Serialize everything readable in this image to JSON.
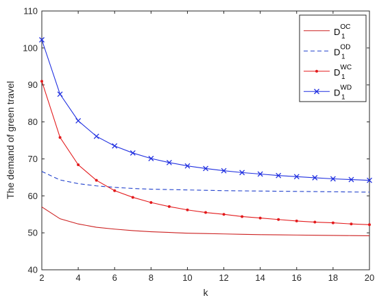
{
  "chart_data": {
    "type": "line",
    "xlabel": "k",
    "ylabel": "The demand of green travel",
    "xlim": [
      2,
      20
    ],
    "ylim": [
      40,
      110
    ],
    "xticks": [
      2,
      4,
      6,
      8,
      10,
      12,
      14,
      16,
      18,
      20
    ],
    "yticks": [
      40,
      50,
      60,
      70,
      80,
      90,
      100,
      110
    ],
    "legend_position": "top-right",
    "grid": false,
    "x": [
      2,
      3,
      4,
      5,
      6,
      7,
      8,
      9,
      10,
      11,
      12,
      13,
      14,
      15,
      16,
      17,
      18,
      19,
      20
    ],
    "series": [
      {
        "label_base": "D",
        "label_sub": "1",
        "label_sup": "OC",
        "color": "#cc1f1f",
        "line_style": "solid",
        "marker": "none",
        "values": [
          57.0,
          53.8,
          52.4,
          51.5,
          51.0,
          50.6,
          50.3,
          50.1,
          49.9,
          49.8,
          49.7,
          49.6,
          49.5,
          49.45,
          49.4,
          49.35,
          49.3,
          49.25,
          49.2
        ]
      },
      {
        "label_base": "D",
        "label_sub": "1",
        "label_sup": "OD",
        "color": "#1f3fcc",
        "line_style": "dashed",
        "marker": "none",
        "values": [
          66.6,
          64.3,
          63.3,
          62.7,
          62.3,
          62.0,
          61.8,
          61.7,
          61.6,
          61.5,
          61.4,
          61.35,
          61.3,
          61.25,
          61.2,
          61.15,
          61.1,
          61.05,
          61.0
        ]
      },
      {
        "label_base": "D",
        "label_sub": "1",
        "label_sup": "WC",
        "color": "#e31a1c",
        "line_style": "solid",
        "marker": "dot",
        "values": [
          91.0,
          75.8,
          68.4,
          64.2,
          61.4,
          59.6,
          58.2,
          57.1,
          56.2,
          55.5,
          55.0,
          54.4,
          54.0,
          53.6,
          53.2,
          52.9,
          52.7,
          52.4,
          52.2
        ]
      },
      {
        "label_base": "D",
        "label_sub": "1",
        "label_sup": "WD",
        "color": "#1f2fe0",
        "line_style": "solid",
        "marker": "x",
        "values": [
          102.2,
          87.5,
          80.3,
          76.1,
          73.5,
          71.6,
          70.1,
          69.0,
          68.1,
          67.4,
          66.8,
          66.3,
          65.9,
          65.5,
          65.2,
          64.9,
          64.6,
          64.4,
          64.2
        ]
      }
    ]
  }
}
